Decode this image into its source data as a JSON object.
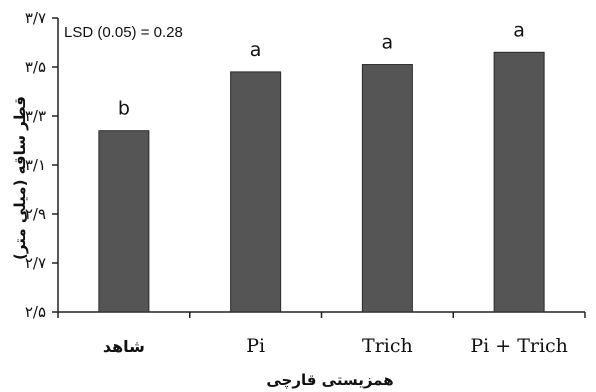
{
  "chart_data": {
    "type": "bar",
    "categories": [
      "شاهد",
      "Pi",
      "Trich",
      "Pi + Trich"
    ],
    "values": [
      3.24,
      3.48,
      3.51,
      3.56
    ],
    "letters": [
      "b",
      "a",
      "a",
      "a"
    ],
    "annotation": "LSD (0.05) = 0.28",
    "xlabel": "همزیستی قارچی",
    "ylabel": "قطر ساقه (میلی متر)",
    "ylim": [
      2.5,
      3.7
    ],
    "yticks": [
      2.5,
      2.7,
      2.9,
      3.1,
      3.3,
      3.5,
      3.7
    ],
    "ytick_labels": [
      "۲/۵",
      "۲/۷",
      "۲/۹",
      "۳/۱",
      "۳/۳",
      "۳/۵",
      "۳/۷"
    ],
    "bar_color": "#555555",
    "grid": false
  }
}
